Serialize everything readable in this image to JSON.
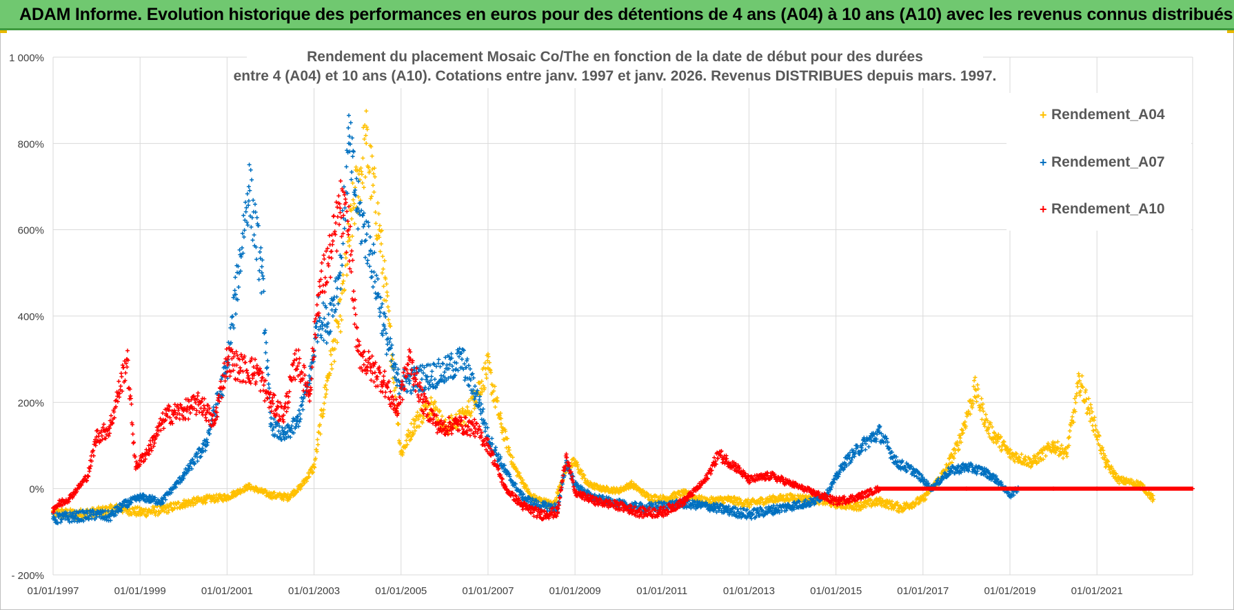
{
  "header": {
    "title": "ADAM Informe. Evolution historique des performances en euros pour des détentions de 4 ans (A04) à 10 ans (A10) avec les revenus connus distribués"
  },
  "colors": {
    "banner": "#70c870",
    "a04": "#ffc000",
    "a07": "#0070c0",
    "a10": "#ff0000",
    "grid": "#d9d9d9"
  },
  "chart_data": {
    "type": "scatter",
    "title": [
      "Rendement du placement Mosaic Co/The en fonction de la date de début pour des durées",
      "entre 4 (A04) et 10 ans (A10).  Cotations entre janv. 1997 et janv. 2026. Revenus DISTRIBUES depuis mars. 1997."
    ],
    "xlabel": "",
    "ylabel": "",
    "x_range": [
      1997.0,
      2023.2
    ],
    "ylim": [
      -200,
      1000
    ],
    "y_ticks": [
      -200,
      0,
      200,
      400,
      600,
      800,
      1000
    ],
    "y_tick_labels": [
      "- 200%",
      "0%",
      "200%",
      "400%",
      "600%",
      "800%",
      "1 000%"
    ],
    "x_ticks": [
      1997,
      1999,
      2001,
      2003,
      2005,
      2007,
      2009,
      2011,
      2013,
      2015,
      2017,
      2019,
      2021
    ],
    "x_tick_labels": [
      "01/01/1997",
      "01/01/1999",
      "01/01/2001",
      "01/01/2003",
      "01/01/2005",
      "01/01/2007",
      "01/01/2009",
      "01/01/2011",
      "01/01/2013",
      "01/01/2015",
      "01/01/2017",
      "01/01/2019",
      "01/01/2021"
    ],
    "legend_position": "top-right",
    "series": [
      {
        "name": "Rendement_A04",
        "color": "#ffc000",
        "points": [
          [
            1997.0,
            -55
          ],
          [
            1997.5,
            -60
          ],
          [
            1998.0,
            -55
          ],
          [
            1998.5,
            -45
          ],
          [
            1999.0,
            -55
          ],
          [
            1999.5,
            -50
          ],
          [
            2000.0,
            -35
          ],
          [
            2000.5,
            -25
          ],
          [
            2001.0,
            -20
          ],
          [
            2001.5,
            5
          ],
          [
            2002.0,
            -15
          ],
          [
            2002.4,
            -20
          ],
          [
            2002.7,
            5
          ],
          [
            2003.0,
            50
          ],
          [
            2003.3,
            250
          ],
          [
            2003.6,
            400
          ],
          [
            2003.9,
            650
          ],
          [
            2004.2,
            800
          ],
          [
            2004.5,
            600
          ],
          [
            2004.8,
            300
          ],
          [
            2005.0,
            80
          ],
          [
            2005.3,
            150
          ],
          [
            2005.7,
            200
          ],
          [
            2006.0,
            140
          ],
          [
            2006.5,
            170
          ],
          [
            2007.0,
            280
          ],
          [
            2007.3,
            150
          ],
          [
            2007.6,
            50
          ],
          [
            2008.0,
            -20
          ],
          [
            2008.5,
            -40
          ],
          [
            2008.8,
            50
          ],
          [
            2009.0,
            60
          ],
          [
            2009.3,
            10
          ],
          [
            2009.6,
            0
          ],
          [
            2010.0,
            -5
          ],
          [
            2010.3,
            10
          ],
          [
            2010.7,
            -20
          ],
          [
            2011.0,
            -25
          ],
          [
            2011.5,
            -10
          ],
          [
            2012.0,
            -30
          ],
          [
            2012.5,
            -25
          ],
          [
            2013.0,
            -35
          ],
          [
            2013.5,
            -25
          ],
          [
            2014.0,
            -20
          ],
          [
            2014.5,
            -25
          ],
          [
            2015.0,
            -35
          ],
          [
            2015.5,
            -40
          ],
          [
            2016.0,
            -30
          ],
          [
            2016.5,
            -45
          ],
          [
            2017.0,
            -25
          ],
          [
            2017.5,
            40
          ],
          [
            2017.8,
            100
          ],
          [
            2018.2,
            230
          ],
          [
            2018.5,
            140
          ],
          [
            2019.0,
            80
          ],
          [
            2019.5,
            60
          ],
          [
            2020.0,
            100
          ],
          [
            2020.3,
            80
          ],
          [
            2020.6,
            250
          ],
          [
            2020.9,
            160
          ],
          [
            2021.2,
            60
          ],
          [
            2021.5,
            20
          ],
          [
            2022.0,
            10
          ],
          [
            2022.3,
            -25
          ]
        ]
      },
      {
        "name": "Rendement_A07",
        "color": "#0070c0",
        "points": [
          [
            1997.0,
            -70
          ],
          [
            1997.5,
            -65
          ],
          [
            1998.0,
            -60
          ],
          [
            1998.3,
            -65
          ],
          [
            1998.6,
            -40
          ],
          [
            1999.0,
            -20
          ],
          [
            1999.5,
            -30
          ],
          [
            2000.0,
            30
          ],
          [
            2000.5,
            100
          ],
          [
            2001.0,
            280
          ],
          [
            2001.2,
            450
          ],
          [
            2001.5,
            700
          ],
          [
            2001.8,
            500
          ],
          [
            2002.0,
            150
          ],
          [
            2002.3,
            120
          ],
          [
            2002.6,
            150
          ],
          [
            2002.9,
            250
          ],
          [
            2003.1,
            400
          ],
          [
            2003.3,
            380
          ],
          [
            2003.6,
            500
          ],
          [
            2003.8,
            800
          ],
          [
            2004.0,
            650
          ],
          [
            2004.3,
            550
          ],
          [
            2004.6,
            380
          ],
          [
            2004.9,
            250
          ],
          [
            2005.2,
            250
          ],
          [
            2005.6,
            260
          ],
          [
            2006.0,
            270
          ],
          [
            2006.4,
            300
          ],
          [
            2006.8,
            200
          ],
          [
            2007.0,
            120
          ],
          [
            2007.4,
            40
          ],
          [
            2007.8,
            -20
          ],
          [
            2008.2,
            -40
          ],
          [
            2008.6,
            -45
          ],
          [
            2008.8,
            60
          ],
          [
            2009.0,
            10
          ],
          [
            2009.4,
            -20
          ],
          [
            2009.8,
            -30
          ],
          [
            2010.2,
            -40
          ],
          [
            2010.6,
            -45
          ],
          [
            2011.0,
            -40
          ],
          [
            2011.5,
            -35
          ],
          [
            2012.0,
            -40
          ],
          [
            2012.5,
            -50
          ],
          [
            2013.0,
            -60
          ],
          [
            2013.5,
            -50
          ],
          [
            2014.0,
            -40
          ],
          [
            2014.5,
            -30
          ],
          [
            2014.8,
            -10
          ],
          [
            2015.2,
            60
          ],
          [
            2015.6,
            100
          ],
          [
            2016.0,
            130
          ],
          [
            2016.4,
            60
          ],
          [
            2016.8,
            40
          ],
          [
            2017.2,
            0
          ],
          [
            2017.6,
            40
          ],
          [
            2018.0,
            50
          ],
          [
            2018.4,
            40
          ],
          [
            2018.7,
            20
          ],
          [
            2019.0,
            -15
          ],
          [
            2019.2,
            0
          ]
        ]
      },
      {
        "name": "Rendement_A10",
        "color": "#ff0000",
        "points": [
          [
            1997.0,
            -45
          ],
          [
            1997.4,
            -20
          ],
          [
            1997.8,
            30
          ],
          [
            1998.0,
            120
          ],
          [
            1998.3,
            140
          ],
          [
            1998.5,
            220
          ],
          [
            1998.7,
            300
          ],
          [
            1998.9,
            50
          ],
          [
            1999.2,
            90
          ],
          [
            1999.6,
            170
          ],
          [
            2000.0,
            180
          ],
          [
            2000.4,
            200
          ],
          [
            2000.7,
            150
          ],
          [
            2001.0,
            300
          ],
          [
            2001.3,
            280
          ],
          [
            2001.7,
            270
          ],
          [
            2002.0,
            200
          ],
          [
            2002.3,
            170
          ],
          [
            2002.6,
            300
          ],
          [
            2002.9,
            220
          ],
          [
            2003.1,
            450
          ],
          [
            2003.4,
            550
          ],
          [
            2003.6,
            650
          ],
          [
            2003.8,
            600
          ],
          [
            2004.0,
            320
          ],
          [
            2004.3,
            280
          ],
          [
            2004.6,
            250
          ],
          [
            2004.9,
            180
          ],
          [
            2005.2,
            300
          ],
          [
            2005.5,
            200
          ],
          [
            2005.9,
            140
          ],
          [
            2006.3,
            150
          ],
          [
            2006.7,
            140
          ],
          [
            2007.0,
            100
          ],
          [
            2007.4,
            0
          ],
          [
            2007.8,
            -40
          ],
          [
            2008.2,
            -60
          ],
          [
            2008.6,
            -55
          ],
          [
            2008.8,
            80
          ],
          [
            2009.0,
            -10
          ],
          [
            2009.5,
            -30
          ],
          [
            2010.0,
            -40
          ],
          [
            2010.5,
            -55
          ],
          [
            2011.0,
            -55
          ],
          [
            2011.5,
            -30
          ],
          [
            2012.0,
            20
          ],
          [
            2012.3,
            80
          ],
          [
            2012.7,
            50
          ],
          [
            2013.0,
            20
          ],
          [
            2013.5,
            30
          ],
          [
            2014.0,
            10
          ],
          [
            2014.5,
            -10
          ],
          [
            2015.0,
            -30
          ],
          [
            2015.5,
            -20
          ],
          [
            2016.0,
            0
          ],
          [
            2017.0,
            0
          ],
          [
            2018.0,
            0
          ],
          [
            2019.0,
            0
          ],
          [
            2020.0,
            0
          ],
          [
            2021.0,
            0
          ],
          [
            2022.0,
            0
          ],
          [
            2023.2,
            0
          ]
        ]
      }
    ]
  }
}
